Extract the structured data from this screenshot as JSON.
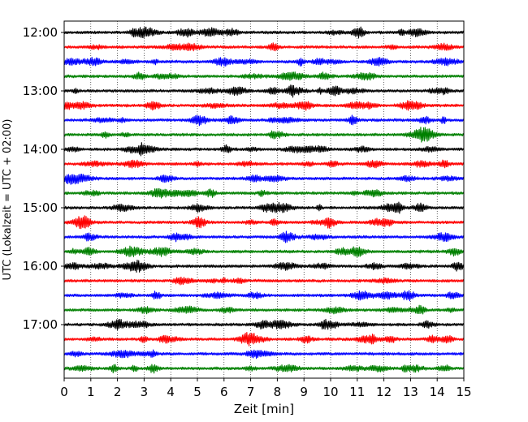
{
  "chart_data": {
    "type": "line",
    "title": "",
    "xlabel": "Zeit  [min]",
    "ylabel": "UTC (Lokalzeit = UTC + 02:00)",
    "xlim": [
      0,
      15
    ],
    "x_ticks": [
      "0",
      "1",
      "2",
      "3",
      "4",
      "5",
      "6",
      "7",
      "8",
      "9",
      "10",
      "11",
      "12",
      "13",
      "14",
      "15"
    ],
    "y_tick_labels": [
      "12:00",
      "13:00",
      "14:00",
      "15:00",
      "16:00",
      "17:00"
    ],
    "grid": "vertical dotted at each minute",
    "colors": [
      "#000000",
      "#ff0000",
      "#0000ff",
      "#008000"
    ],
    "series": [
      {
        "start": "12:00",
        "x_end": 15,
        "color": "#000000"
      },
      {
        "start": "12:15",
        "x_end": 15,
        "color": "#ff0000"
      },
      {
        "start": "12:30",
        "x_end": 15,
        "color": "#0000ff"
      },
      {
        "start": "12:45",
        "x_end": 15,
        "color": "#008000"
      },
      {
        "start": "13:00",
        "x_end": 15,
        "color": "#000000"
      },
      {
        "start": "13:15",
        "x_end": 15,
        "color": "#ff0000"
      },
      {
        "start": "13:30",
        "x_end": 15,
        "color": "#0000ff"
      },
      {
        "start": "13:45",
        "x_end": 15,
        "color": "#008000"
      },
      {
        "start": "14:00",
        "x_end": 15,
        "color": "#000000"
      },
      {
        "start": "14:15",
        "x_end": 15,
        "color": "#ff0000"
      },
      {
        "start": "14:30",
        "x_end": 15,
        "color": "#0000ff"
      },
      {
        "start": "14:45",
        "x_end": 15,
        "color": "#008000"
      },
      {
        "start": "15:00",
        "x_end": 15,
        "color": "#000000"
      },
      {
        "start": "15:15",
        "x_end": 15,
        "color": "#ff0000"
      },
      {
        "start": "15:30",
        "x_end": 15,
        "color": "#0000ff"
      },
      {
        "start": "15:45",
        "x_end": 15,
        "color": "#008000"
      },
      {
        "start": "16:00",
        "x_end": 15,
        "color": "#000000"
      },
      {
        "start": "16:15",
        "x_end": 15,
        "color": "#ff0000"
      },
      {
        "start": "16:30",
        "x_end": 15,
        "color": "#0000ff"
      },
      {
        "start": "16:45",
        "x_end": 15,
        "color": "#008000"
      },
      {
        "start": "17:00",
        "x_end": 15,
        "color": "#000000"
      },
      {
        "start": "17:15",
        "x_end": 15,
        "color": "#ff0000"
      },
      {
        "start": "17:30",
        "x_end": 15,
        "color": "#0000ff"
      },
      {
        "start": "17:45",
        "x_end": 15,
        "color": "#008000"
      }
    ]
  }
}
